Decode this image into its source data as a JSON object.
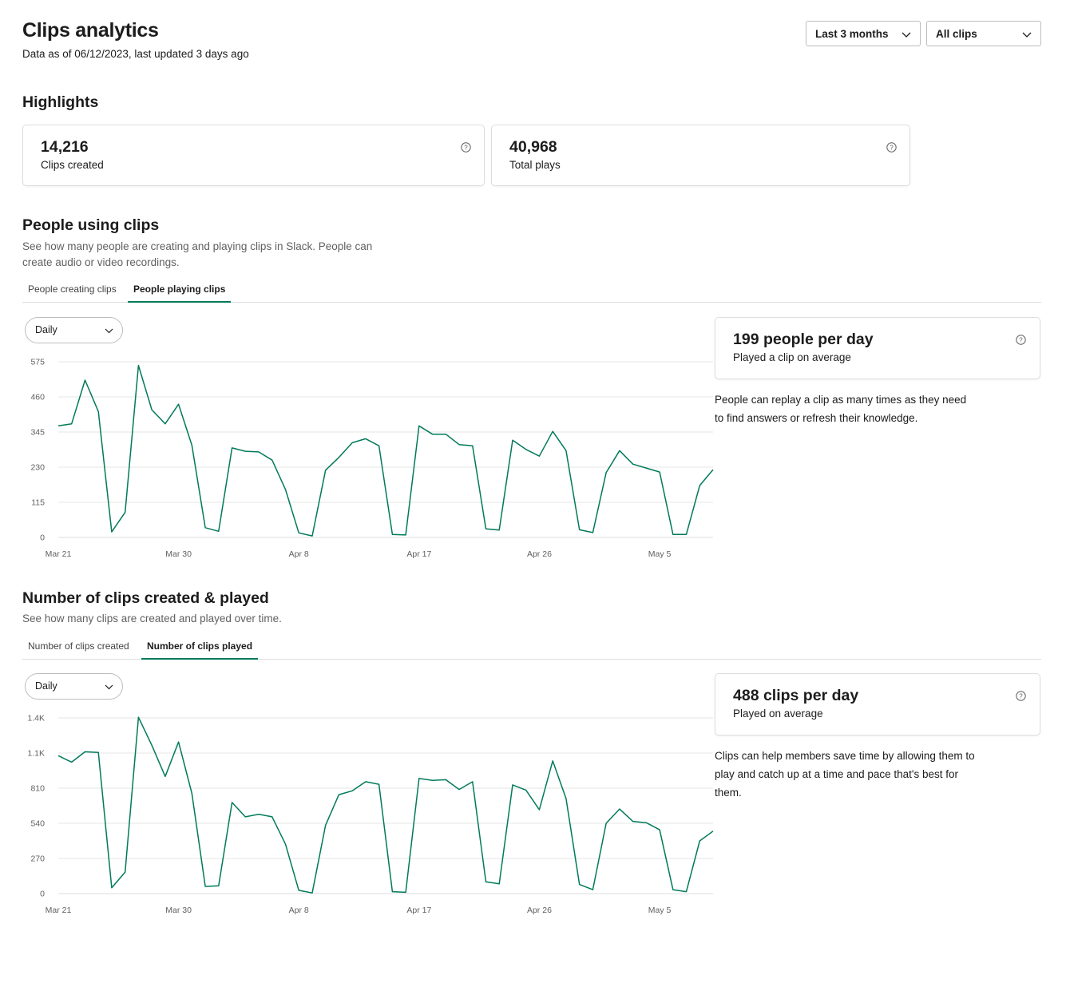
{
  "header": {
    "title": "Clips analytics",
    "subtitle": "Data as of 06/12/2023, last updated 3 days ago",
    "range_select": "Last 3 months",
    "clips_select": "All clips"
  },
  "highlights": {
    "title": "Highlights",
    "cards": [
      {
        "value": "14,216",
        "label": "Clips created"
      },
      {
        "value": "40,968",
        "label": "Total plays"
      }
    ]
  },
  "people": {
    "title": "People using clips",
    "description_line1": "See how many people are creating and playing clips in Slack. People can",
    "description_line2": "create audio or video recordings.",
    "tabs": [
      "People creating clips",
      "People playing clips"
    ],
    "active_tab": 1,
    "interval": "Daily",
    "stat_value": "199 people per day",
    "stat_label": "Played a clip on average",
    "note_line1": "People can replay a clip as many times as they need",
    "note_line2": "to find answers or refresh their knowledge."
  },
  "clips": {
    "title": "Number of clips created & played",
    "description": "See how many clips are created and played over time.",
    "tabs": [
      "Number of clips created",
      "Number of clips played"
    ],
    "active_tab": 1,
    "interval": "Daily",
    "stat_value": "488 clips per day",
    "stat_label": "Played on average",
    "note_line1": "Clips can help members save time by allowing them to",
    "note_line2": "play and catch up at a time and pace that's best for them."
  },
  "colors": {
    "accent": "#007a5a",
    "grid": "#e5e5e5",
    "border": "#dddddd"
  },
  "chart_data": [
    {
      "type": "line",
      "series": [
        {
          "values": [
            365,
            372,
            515,
            412,
            18,
            82,
            563,
            418,
            372,
            436,
            302,
            32,
            20,
            293,
            282,
            280,
            253,
            157,
            15,
            5,
            220,
            262,
            310,
            323,
            300,
            10,
            8,
            365,
            338,
            338,
            304,
            300,
            28,
            24,
            318,
            288,
            266,
            347,
            284,
            25,
            16,
            212,
            284,
            240,
            227,
            214,
            10,
            10,
            170,
            222
          ]
        }
      ],
      "x_ticks": [
        {
          "index": 0,
          "label": "Mar 21"
        },
        {
          "index": 9,
          "label": "Mar 30"
        },
        {
          "index": 18,
          "label": "Apr 8"
        },
        {
          "index": 27,
          "label": "Apr 17"
        },
        {
          "index": 36,
          "label": "Apr 26"
        },
        {
          "index": 45,
          "label": "May 5"
        }
      ],
      "y_ticks": [
        {
          "value": 0,
          "label": "0"
        },
        {
          "value": 115,
          "label": "115"
        },
        {
          "value": 230,
          "label": "230"
        },
        {
          "value": 345,
          "label": "345"
        },
        {
          "value": 460,
          "label": "460"
        },
        {
          "value": 575,
          "label": "575"
        }
      ],
      "ylim": [
        0,
        575
      ],
      "grid": true,
      "legend": "none"
    },
    {
      "type": "line",
      "series": [
        {
          "values": [
            1060,
            1010,
            1090,
            1085,
            45,
            165,
            1355,
            1140,
            900,
            1165,
            770,
            55,
            60,
            700,
            590,
            610,
            590,
            380,
            25,
            5,
            525,
            760,
            790,
            860,
            840,
            15,
            10,
            885,
            870,
            875,
            800,
            860,
            90,
            75,
            835,
            795,
            645,
            1020,
            730,
            70,
            30,
            540,
            650,
            555,
            545,
            490,
            30,
            15,
            405,
            480
          ]
        }
      ],
      "x_ticks": [
        {
          "index": 0,
          "label": "Mar 21"
        },
        {
          "index": 9,
          "label": "Mar 30"
        },
        {
          "index": 18,
          "label": "Apr 8"
        },
        {
          "index": 27,
          "label": "Apr 17"
        },
        {
          "index": 36,
          "label": "Apr 26"
        },
        {
          "index": 45,
          "label": "May 5"
        }
      ],
      "y_ticks": [
        {
          "value": 0,
          "label": "0"
        },
        {
          "value": 270,
          "label": "270"
        },
        {
          "value": 540,
          "label": "540"
        },
        {
          "value": 810,
          "label": "810"
        },
        {
          "value": 1080,
          "label": "1.1K"
        },
        {
          "value": 1350,
          "label": "1.4K"
        }
      ],
      "ylim": [
        0,
        1350
      ],
      "grid": true,
      "legend": "none"
    }
  ]
}
